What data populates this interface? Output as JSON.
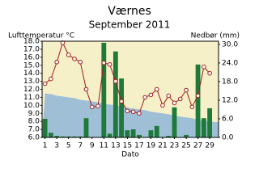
{
  "chart_data": {
    "type": "combo",
    "title": "Værnes",
    "subtitle": "September 2011",
    "y_label": "Lufttemperatur °C",
    "y2_label": "Nedbør (mm)",
    "x_label": "Dato",
    "x": [
      1,
      2,
      3,
      4,
      5,
      6,
      7,
      8,
      9,
      10,
      11,
      12,
      13,
      14,
      15,
      16,
      17,
      18,
      19,
      20,
      21,
      22,
      23,
      24,
      25,
      26,
      27,
      28,
      29,
      30
    ],
    "xticks": [
      1,
      3,
      5,
      7,
      9,
      11,
      13,
      15,
      17,
      19,
      21,
      23,
      25,
      27,
      29
    ],
    "xlim": [
      0.5,
      30.5
    ],
    "ylim": [
      6,
      18
    ],
    "yticks": [
      {
        "value": 6,
        "label": "6.0"
      },
      {
        "value": 7,
        "label": "7.0"
      },
      {
        "value": 8,
        "label": "8.0"
      },
      {
        "value": 9,
        "label": "9.0"
      },
      {
        "value": 10,
        "label": "10.0"
      },
      {
        "value": 11,
        "label": "11.0"
      },
      {
        "value": 12,
        "label": "12.0"
      },
      {
        "value": 13,
        "label": "13.0"
      },
      {
        "value": 14,
        "label": "14.0"
      },
      {
        "value": 15,
        "label": "15.0"
      },
      {
        "value": 16,
        "label": "16.0"
      },
      {
        "value": 17,
        "label": "17.0"
      },
      {
        "value": 18,
        "label": "18.0"
      }
    ],
    "y2lim": [
      0,
      31
    ],
    "y2ticks": [
      {
        "value": 0,
        "label": "0.0"
      },
      {
        "value": 6,
        "label": "6.0"
      },
      {
        "value": 12,
        "label": "12.0"
      },
      {
        "value": 18,
        "label": "18.0"
      },
      {
        "value": 24,
        "label": "24.0"
      },
      {
        "value": 30,
        "label": "30.0"
      }
    ],
    "background": "#f5f0c8",
    "series": [
      {
        "type": "area",
        "color": "#9fbfd6",
        "values": [
          11.5,
          11.4,
          11.2,
          11.1,
          11.0,
          10.9,
          10.7,
          10.6,
          10.5,
          10.4,
          10.2,
          10.1,
          10.0,
          9.9,
          9.7,
          9.6,
          9.5,
          9.4,
          9.2,
          9.1,
          9.0,
          8.9,
          8.7,
          8.6,
          8.5,
          8.4,
          8.2,
          8.1,
          8.0,
          7.9
        ]
      },
      {
        "type": "bar",
        "axis": "y2",
        "color": "#1f7a3a",
        "values": [
          6.0,
          1.5,
          0.5,
          0.3,
          0.3,
          0.3,
          0.3,
          6.2,
          0,
          0,
          30.5,
          1.2,
          27.7,
          19.0,
          2.3,
          2.6,
          0.8,
          0,
          2.3,
          3.7,
          0,
          0.5,
          9.7,
          0,
          0.8,
          0,
          23.5,
          6.2,
          9.4,
          0
        ]
      },
      {
        "type": "line",
        "color": "#a01c1c",
        "values": [
          12.7,
          13.3,
          15.4,
          17.8,
          16.3,
          15.8,
          15.4,
          12.0,
          9.8,
          9.9,
          15.3,
          15.1,
          13.0,
          10.5,
          9.3,
          9.2,
          9.0,
          11.0,
          11.3,
          12.0,
          10.0,
          11.2,
          10.3,
          10.8,
          11.9,
          9.8,
          11.2,
          14.8,
          14.0,
          null
        ]
      }
    ]
  }
}
